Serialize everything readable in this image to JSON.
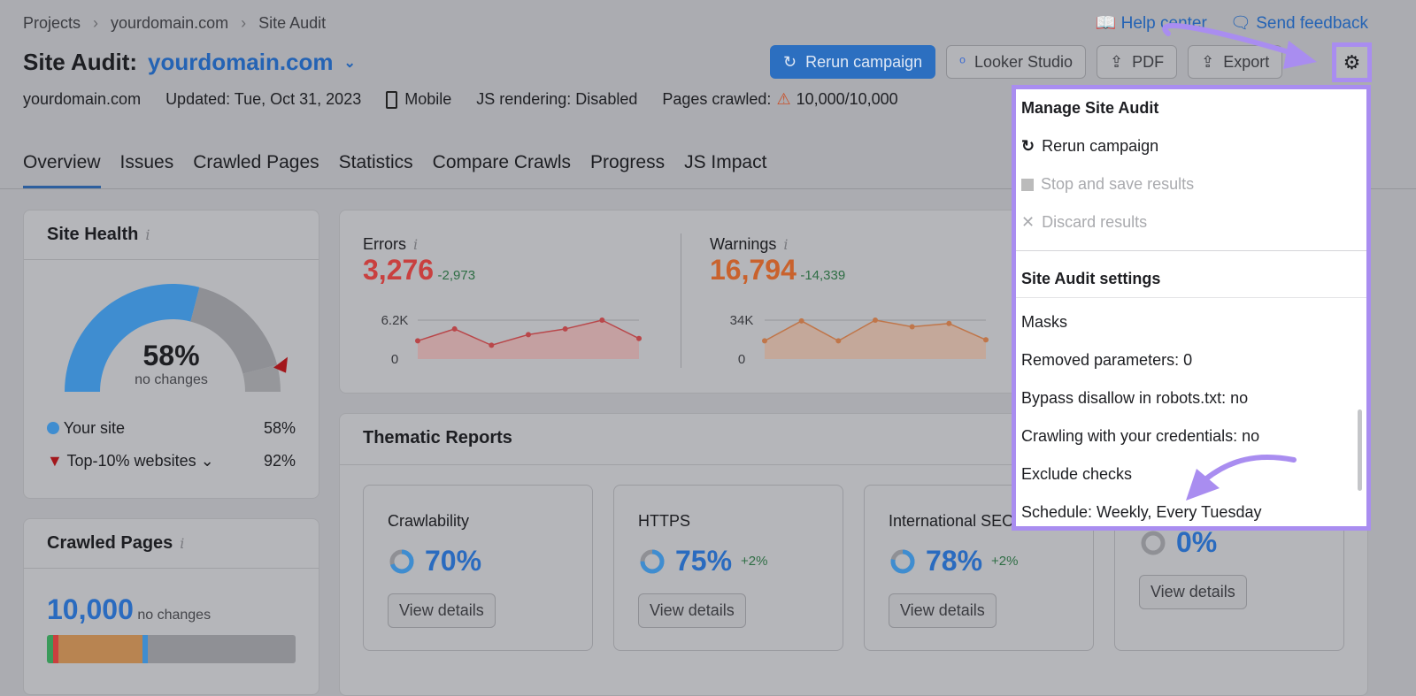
{
  "breadcrumb": [
    "Projects",
    "yourdomain.com",
    "Site Audit"
  ],
  "header": {
    "title": "Site Audit:",
    "domain": "yourdomain.com",
    "meta_domain": "yourdomain.com",
    "updated": "Updated: Tue, Oct 31, 2023",
    "device": "Mobile",
    "js": "JS rendering: Disabled",
    "pages_label": "Pages crawled:",
    "pages_value": "10,000/10,000"
  },
  "links": {
    "help": "Help center",
    "feedback": "Send feedback"
  },
  "toolbar": {
    "rerun": "Rerun campaign",
    "looker": "Looker Studio",
    "pdf": "PDF",
    "export": "Export"
  },
  "tabs": [
    "Overview",
    "Issues",
    "Crawled Pages",
    "Statistics",
    "Compare Crawls",
    "Progress",
    "JS Impact"
  ],
  "site_health": {
    "title": "Site Health",
    "value": "58%",
    "note": "no changes",
    "your_site_label": "Your site",
    "your_site_value": "58%",
    "top_label": "Top-10% websites",
    "top_value": "92%",
    "your_pct": 58,
    "top_pct": 92
  },
  "crawled": {
    "title": "Crawled Pages",
    "value": "10,000",
    "note": "no changes"
  },
  "errors": {
    "label": "Errors",
    "value": "3,276",
    "delta": "-2,973",
    "ymax": "6.2K",
    "ymin": "0",
    "series": [
      2900,
      4800,
      2200,
      3900,
      4800,
      6200,
      3276
    ],
    "max": 6200
  },
  "warnings": {
    "label": "Warnings",
    "value": "16,794",
    "delta": "-14,339",
    "ymax": "34K",
    "ymin": "0",
    "series": [
      15900,
      33300,
      15900,
      34000,
      28200,
      31100,
      16794
    ],
    "max": 34000
  },
  "thematic": {
    "title": "Thematic Reports",
    "view": "View details",
    "items": [
      {
        "name": "Crawlability",
        "pct": "70%",
        "delta": "",
        "v": 70
      },
      {
        "name": "HTTPS",
        "pct": "75%",
        "delta": "+2%",
        "v": 75
      },
      {
        "name": "International SEO",
        "pct": "78%",
        "delta": "+2%",
        "v": 78
      },
      {
        "name": "",
        "pct": "0%",
        "delta": "",
        "v": 0
      }
    ]
  },
  "menu": {
    "manage": "Manage Site Audit",
    "rerun": "Rerun campaign",
    "stop": "Stop and save results",
    "discard": "Discard results",
    "settings": "Site Audit settings",
    "items": [
      "Masks",
      "Removed parameters: 0",
      "Bypass disallow in robots.txt: no",
      "Crawling with your credentials: no",
      "Exclude checks",
      "Schedule: Weekly, Every Tuesday"
    ]
  },
  "colors": {
    "accent": "#2c6fc0",
    "highlight": "#a98df0",
    "error": "#c9403f",
    "warning": "#c9622d"
  }
}
